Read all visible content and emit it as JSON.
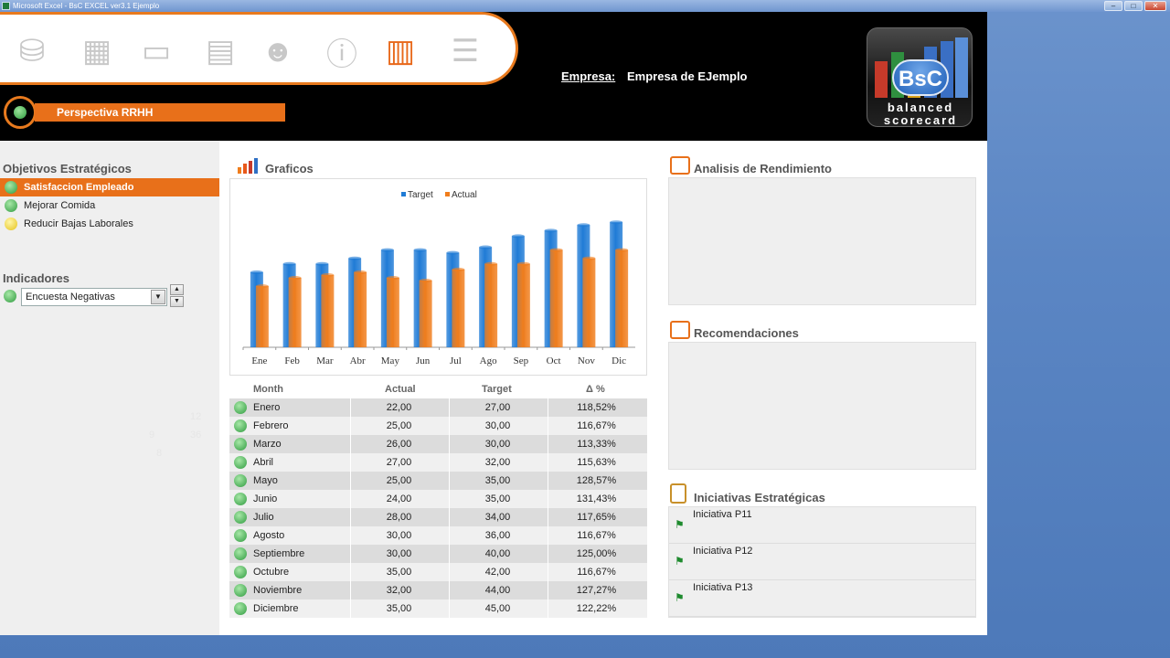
{
  "window": {
    "title": "Microsoft Excel - BsC EXCEL ver3.1 Ejemplo"
  },
  "toolbar": {
    "icons": [
      "database-upload-icon",
      "users-calendar-icon",
      "pointer-monitor-icon",
      "calculator-icon",
      "users-icon",
      "info-icon",
      "buildings-icon",
      "server-icon"
    ]
  },
  "company": {
    "label": "Empresa:",
    "value": "Empresa de EJemplo"
  },
  "logo": {
    "badge": "BsC",
    "line1": "balanced",
    "line2": "scorecard"
  },
  "perspective": {
    "label": "Perspectiva RRHH"
  },
  "objectives": {
    "title": "Objetivos Estratégicos",
    "items": [
      {
        "label": "Satisfaccion Empleado",
        "status": "green",
        "selected": true
      },
      {
        "label": "Mejorar Comida",
        "status": "green",
        "selected": false
      },
      {
        "label": "Reducir Bajas Laborales",
        "status": "yellow",
        "selected": false
      }
    ]
  },
  "indicators": {
    "title": "Indicadores",
    "selected": "Encuesta Negativas"
  },
  "charts_section": {
    "title": "Graficos"
  },
  "chart_data": {
    "type": "bar",
    "categories": [
      "Ene",
      "Feb",
      "Mar",
      "Abr",
      "May",
      "Jun",
      "Jul",
      "Ago",
      "Sep",
      "Oct",
      "Nov",
      "Dic"
    ],
    "series": [
      {
        "name": "Target",
        "values": [
          27,
          30,
          30,
          32,
          35,
          35,
          34,
          36,
          40,
          42,
          44,
          45
        ],
        "color": "#1f7bd6"
      },
      {
        "name": "Actual",
        "values": [
          22,
          25,
          26,
          27,
          25,
          24,
          28,
          30,
          30,
          35,
          32,
          35
        ],
        "color": "#f07d1c"
      }
    ],
    "ylim": [
      0,
      50
    ],
    "legend": "top-center",
    "grid": false
  },
  "table": {
    "headers": [
      "Month",
      "Actual",
      "Target",
      "Δ %"
    ],
    "rows": [
      {
        "month": "Enero",
        "actual": "22,00",
        "target": "27,00",
        "pct": "118,52%"
      },
      {
        "month": "Febrero",
        "actual": "25,00",
        "target": "30,00",
        "pct": "116,67%"
      },
      {
        "month": "Marzo",
        "actual": "26,00",
        "target": "30,00",
        "pct": "113,33%"
      },
      {
        "month": "Abril",
        "actual": "27,00",
        "target": "32,00",
        "pct": "115,63%"
      },
      {
        "month": "Mayo",
        "actual": "25,00",
        "target": "35,00",
        "pct": "128,57%"
      },
      {
        "month": "Junio",
        "actual": "24,00",
        "target": "35,00",
        "pct": "131,43%"
      },
      {
        "month": "Julio",
        "actual": "28,00",
        "target": "34,00",
        "pct": "117,65%"
      },
      {
        "month": "Agosto",
        "actual": "30,00",
        "target": "36,00",
        "pct": "116,67%"
      },
      {
        "month": "Septiembre",
        "actual": "30,00",
        "target": "40,00",
        "pct": "125,00%"
      },
      {
        "month": "Octubre",
        "actual": "35,00",
        "target": "42,00",
        "pct": "116,67%"
      },
      {
        "month": "Noviembre",
        "actual": "32,00",
        "target": "44,00",
        "pct": "127,27%"
      },
      {
        "month": "Diciembre",
        "actual": "35,00",
        "target": "45,00",
        "pct": "122,22%"
      }
    ]
  },
  "right": {
    "analysis_title": "Analisis de Rendimiento",
    "recommendations_title": "Recomendaciones",
    "initiatives_title": "Iniciativas Estratégicas",
    "initiatives": [
      "Iniciativa P11",
      "Iniciativa P12",
      "Iniciativa P13"
    ]
  },
  "colors": {
    "accent": "#e8701a",
    "header_bg": "#000000",
    "target": "#1f7bd6",
    "actual": "#f07d1c"
  }
}
